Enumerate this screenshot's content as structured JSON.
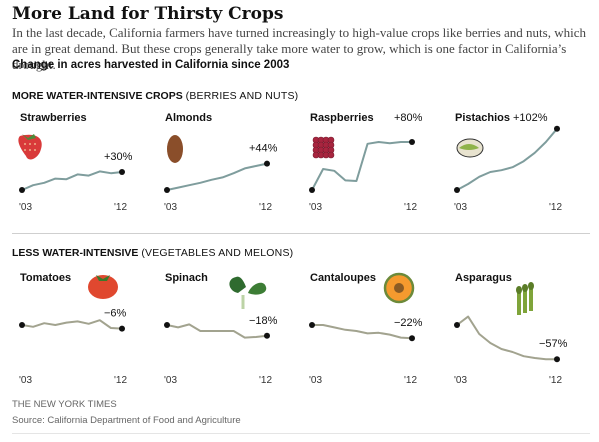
{
  "header": {
    "title": "More Land for Thirsty Crops",
    "intro": "In the last decade, California farmers have turned increasingly to high-value crops like berries and nuts, which are in great demand. But these crops generally take more water to grow, which is one factor in California’s drought.",
    "subhead": "Change in acres harvested in California since 2003"
  },
  "sections": {
    "more": {
      "label": "MORE WATER-INTENSIVE CROPS",
      "note": "(BERRIES AND NUTS)"
    },
    "less": {
      "label": "LESS WATER-INTENSIVE",
      "note": "(VEGETABLES AND MELONS)"
    }
  },
  "footer": {
    "credit": "THE NEW YORK TIMES",
    "source": "Source: California Department of Food and Agriculture"
  },
  "colors": {
    "line": "#7f9d9d",
    "line_less": "#a2a38f",
    "dot": "#111111"
  },
  "chart_data": [
    {
      "type": "line",
      "title": "Strawberries",
      "icon": "strawberry-icon",
      "label": "+30%",
      "row": "more",
      "x": [
        "'03",
        "'04",
        "'05",
        "'06",
        "'07",
        "'08",
        "'09",
        "'10",
        "'11",
        "'12"
      ],
      "y": [
        0,
        8,
        12,
        19,
        18,
        26,
        24,
        31,
        28,
        30
      ],
      "ylim": [
        -60,
        110
      ],
      "xticks": [
        "'03",
        "'12"
      ]
    },
    {
      "type": "line",
      "title": "Almonds",
      "icon": "almond-icon",
      "label": "+44%",
      "row": "more",
      "x": [
        "'03",
        "'04",
        "'05",
        "'06",
        "'07",
        "'08",
        "'09",
        "'10",
        "'11",
        "'12"
      ],
      "y": [
        0,
        4,
        8,
        12,
        17,
        21,
        28,
        36,
        40,
        44
      ],
      "ylim": [
        -60,
        110
      ],
      "xticks": [
        "'03",
        "'12"
      ]
    },
    {
      "type": "line",
      "title": "Raspberries",
      "icon": "raspberry-icon",
      "label": "+80%",
      "row": "more",
      "x": [
        "'03",
        "'04",
        "'05",
        "'06",
        "'07",
        "'08",
        "'09",
        "'10",
        "'11",
        "'12"
      ],
      "y": [
        0,
        35,
        32,
        16,
        15,
        77,
        80,
        78,
        80,
        80
      ],
      "ylim": [
        -60,
        110
      ],
      "xticks": [
        "'03",
        "'12"
      ]
    },
    {
      "type": "line",
      "title": "Pistachios",
      "icon": "pistachio-icon",
      "label": "+102%",
      "row": "more",
      "x": [
        "'03",
        "'04",
        "'05",
        "'06",
        "'07",
        "'08",
        "'09",
        "'10",
        "'11",
        "'12"
      ],
      "y": [
        0,
        10,
        22,
        30,
        33,
        38,
        48,
        62,
        80,
        102
      ],
      "ylim": [
        -60,
        110
      ],
      "xticks": [
        "'03",
        "'12"
      ]
    },
    {
      "type": "line",
      "title": "Tomatoes",
      "icon": "tomato-icon",
      "label": "−6%",
      "row": "less",
      "x": [
        "'03",
        "'04",
        "'05",
        "'06",
        "'07",
        "'08",
        "'09",
        "'10",
        "'11",
        "'12"
      ],
      "y": [
        0,
        -3,
        3,
        0,
        4,
        6,
        2,
        8,
        -5,
        -6
      ],
      "ylim": [
        -60,
        110
      ],
      "xticks": [
        "'03",
        "'12"
      ]
    },
    {
      "type": "line",
      "title": "Spinach",
      "icon": "spinach-icon",
      "label": "−18%",
      "row": "less",
      "x": [
        "'03",
        "'04",
        "'05",
        "'06",
        "'07",
        "'08",
        "'09",
        "'10",
        "'11",
        "'12"
      ],
      "y": [
        0,
        -4,
        1,
        -10,
        -10,
        -10,
        -10,
        -21,
        -20,
        -18
      ],
      "ylim": [
        -60,
        110
      ],
      "xticks": [
        "'03",
        "'12"
      ]
    },
    {
      "type": "line",
      "title": "Cantaloupes",
      "icon": "cantaloupe-icon",
      "label": "−22%",
      "row": "less",
      "x": [
        "'03",
        "'04",
        "'05",
        "'06",
        "'07",
        "'08",
        "'09",
        "'10",
        "'11",
        "'12"
      ],
      "y": [
        0,
        0,
        -4,
        -8,
        -10,
        -14,
        -13,
        -16,
        -21,
        -22
      ],
      "ylim": [
        -60,
        110
      ],
      "xticks": [
        "'03",
        "'12"
      ]
    },
    {
      "type": "line",
      "title": "Asparagus",
      "icon": "asparagus-icon",
      "label": "−57%",
      "row": "less",
      "x": [
        "'03",
        "'04",
        "'05",
        "'06",
        "'07",
        "'08",
        "'09",
        "'10",
        "'11",
        "'12"
      ],
      "y": [
        0,
        14,
        -15,
        -30,
        -40,
        -45,
        -52,
        -55,
        -57,
        -57
      ],
      "ylim": [
        -60,
        110
      ],
      "xticks": [
        "'03",
        "'12"
      ]
    }
  ]
}
